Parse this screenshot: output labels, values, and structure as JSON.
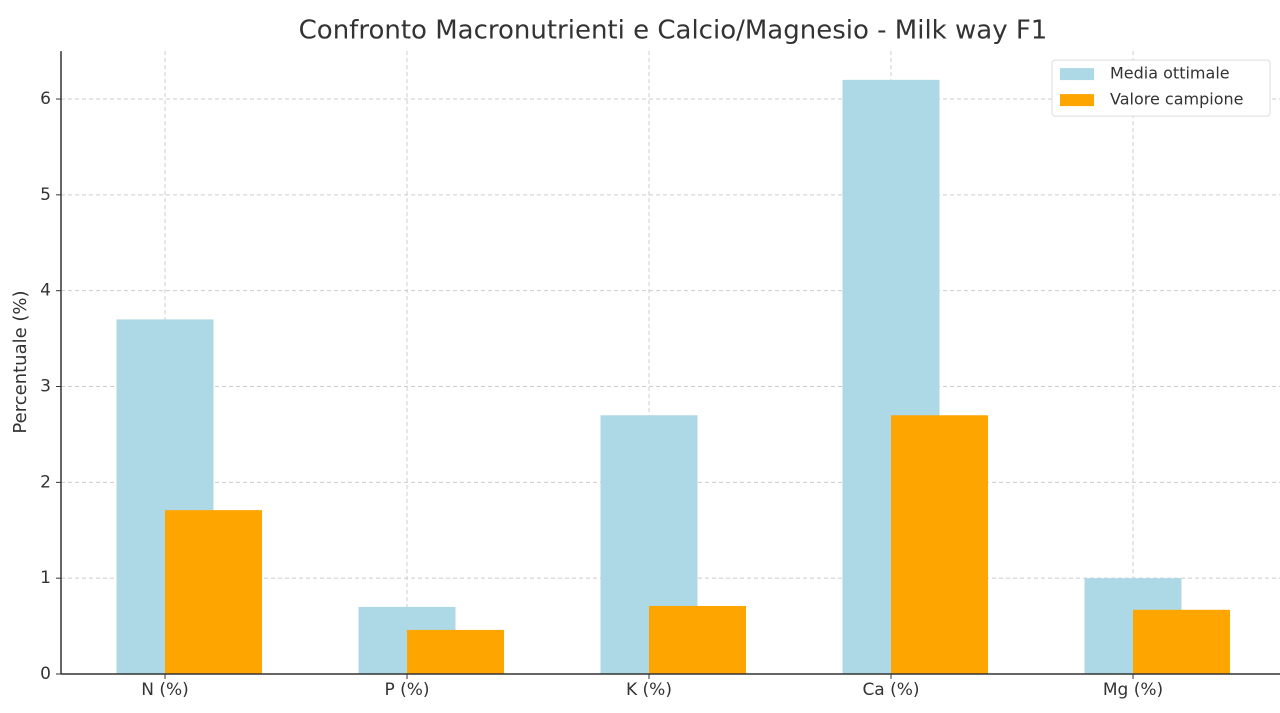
{
  "chart_data": {
    "type": "bar",
    "title": "Confronto Macronutrienti e Calcio/Magnesio - Milk way F1",
    "y_label": "Percentuale (%)",
    "categories": [
      "N (%)",
      "P (%)",
      "K (%)",
      "Ca (%)",
      "Mg (%)"
    ],
    "series": [
      {
        "name": "Media ottimale",
        "color": "#add8e6",
        "values": [
          3.7,
          0.7,
          2.7,
          6.2,
          1.0
        ]
      },
      {
        "name": "Valore campione",
        "color": "#ffa500",
        "values": [
          1.71,
          0.46,
          0.71,
          2.7,
          0.67
        ]
      }
    ],
    "ylim": [
      0,
      6.5
    ],
    "yticks": [
      0,
      1,
      2,
      3,
      4,
      5,
      6
    ],
    "grid": true,
    "legend": "upper right"
  }
}
